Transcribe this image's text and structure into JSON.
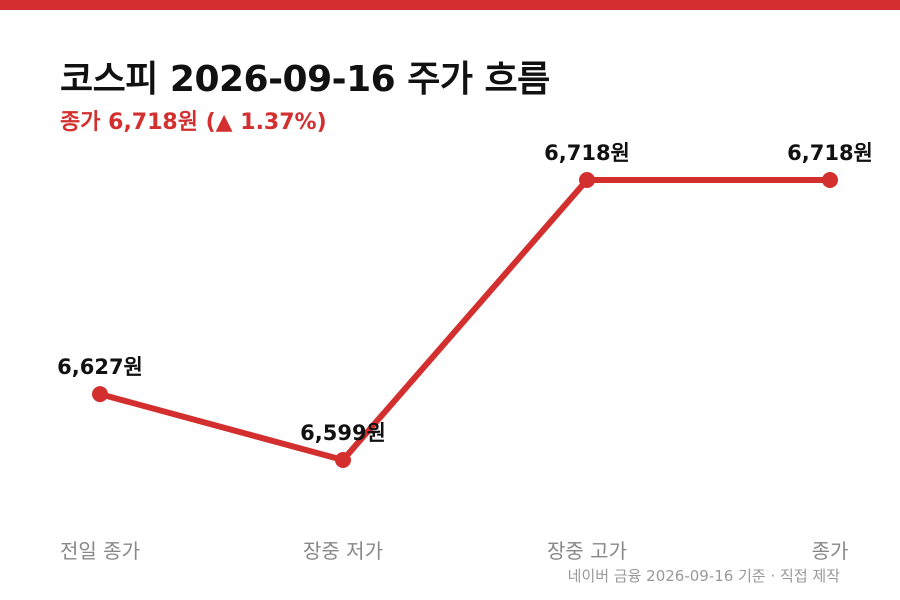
{
  "colors": {
    "accent": "#d32f2f",
    "title": "#111111",
    "label": "#111111",
    "category": "#888888",
    "source": "#999999"
  },
  "header": {
    "title": "코스피 2026-09-16 주가 흐름",
    "subtitle": "종가 6,718원 (▲ 1.37%)"
  },
  "chart_data": {
    "type": "line",
    "categories": [
      "전일 종가",
      "장중 저가",
      "장중 고가",
      "종가"
    ],
    "values": [
      6627,
      6599,
      6718,
      6718
    ],
    "data_labels": [
      "6,627원",
      "6,599원",
      "6,718원",
      "6,718원"
    ],
    "title": "코스피 2026-09-16 주가 흐름",
    "subtitle": "종가 6,718원 (▲ 1.37%)",
    "xlabel": "",
    "ylabel": "",
    "grid": false,
    "legend": "none"
  },
  "footer": {
    "source": "네이버 금융 2026-09-16 기준 · 직접 제작"
  }
}
